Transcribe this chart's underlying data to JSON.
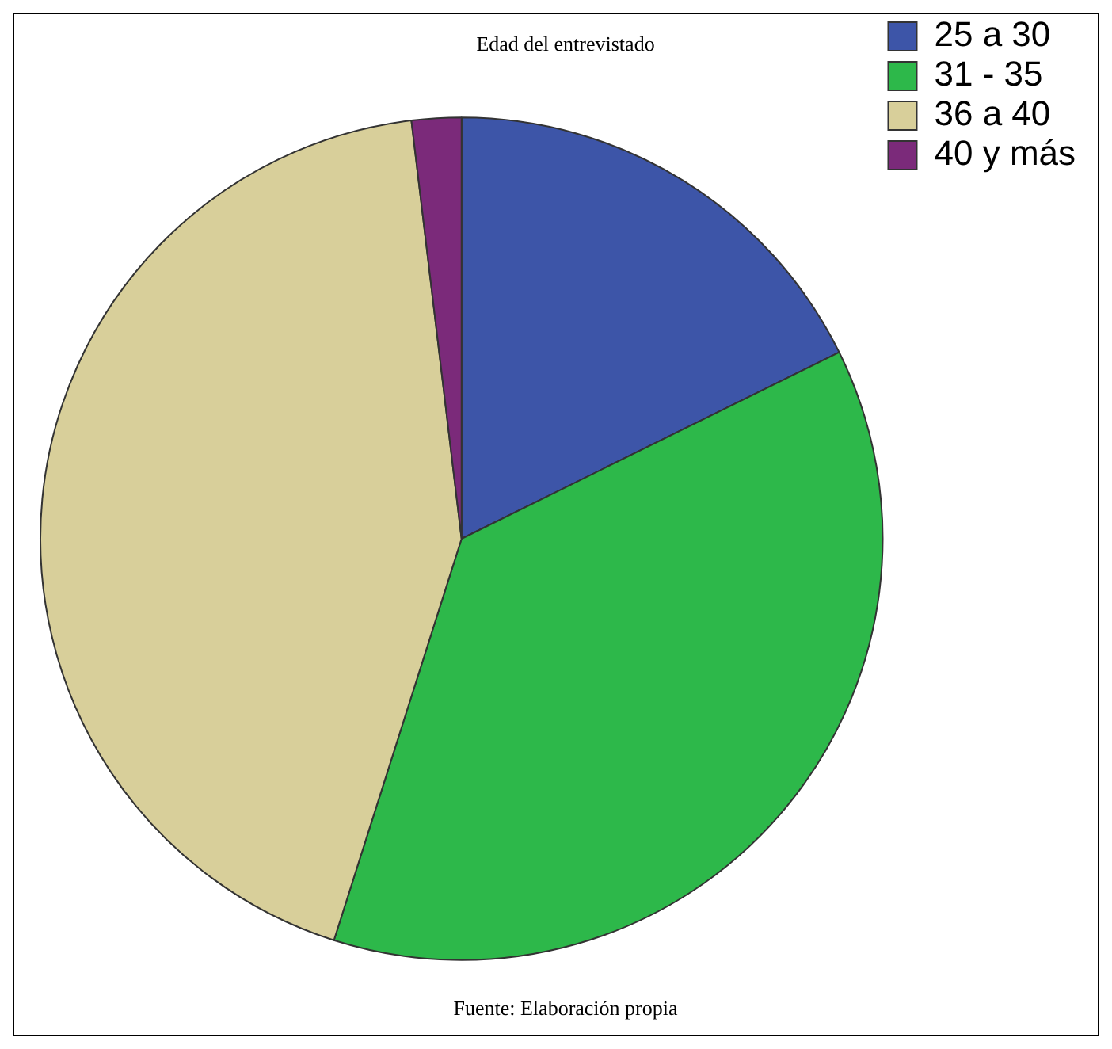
{
  "chart_data": {
    "type": "pie",
    "title": "Edad del entrevistado",
    "categories": [
      "25 a 30",
      "31 - 35",
      "36 a 40",
      "40 y más"
    ],
    "values": [
      17.7,
      37.2,
      43.2,
      1.9
    ],
    "colors": [
      "#3d55a8",
      "#2db84a",
      "#d8cf9a",
      "#7b2a7a"
    ],
    "legend": "top right",
    "annotations": [
      "Fuente: Elaboración propia"
    ]
  }
}
